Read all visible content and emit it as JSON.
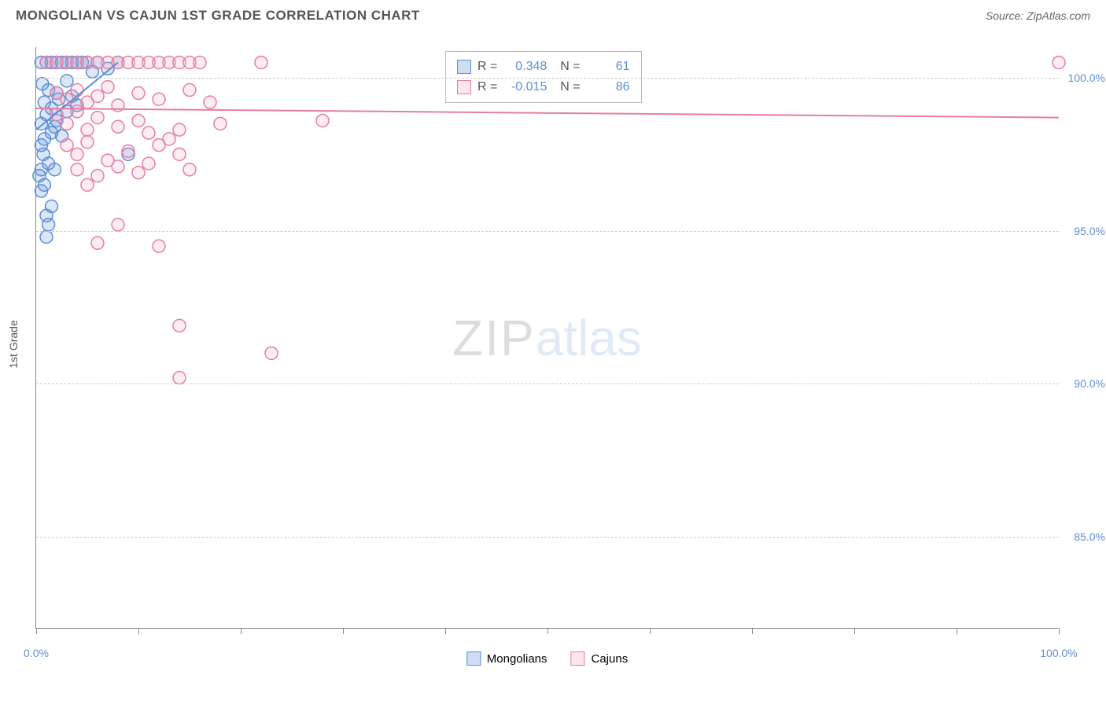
{
  "title": "MONGOLIAN VS CAJUN 1ST GRADE CORRELATION CHART",
  "source": "Source: ZipAtlas.com",
  "chart": {
    "type": "scatter",
    "y_axis_label": "1st Grade",
    "xlim": [
      0,
      100
    ],
    "ylim": [
      82,
      101
    ],
    "x_ticks": [
      0,
      10,
      20,
      30,
      40,
      50,
      60,
      70,
      80,
      90,
      100
    ],
    "x_tick_labels": {
      "0": "0.0%",
      "100": "100.0%"
    },
    "y_ticks": [
      85,
      90,
      95,
      100
    ],
    "y_tick_labels": {
      "85": "85.0%",
      "90": "90.0%",
      "95": "95.0%",
      "100": "100.0%"
    },
    "grid_color": "#cccccc",
    "axis_color": "#888888",
    "background_color": "#ffffff",
    "marker_radius": 8,
    "marker_fill_opacity": 0.22,
    "marker_stroke_width": 1.5,
    "trend_line_width": 2,
    "series": [
      {
        "name": "Mongolians",
        "color_stroke": "#5b8fd6",
        "color_fill": "#5b8fd6",
        "R": "0.348",
        "N": "61",
        "trend": {
          "x1": 0,
          "y1": 98.3,
          "x2": 8,
          "y2": 100.5
        },
        "points": [
          [
            0.5,
            100.5
          ],
          [
            1,
            100.5
          ],
          [
            1.5,
            100.5
          ],
          [
            2,
            100.5
          ],
          [
            2.5,
            100.5
          ],
          [
            3,
            100.5
          ],
          [
            3.5,
            100.5
          ],
          [
            4,
            100.5
          ],
          [
            4.5,
            100.5
          ],
          [
            5,
            100.5
          ],
          [
            0.6,
            99.8
          ],
          [
            1.2,
            99.6
          ],
          [
            2,
            99.5
          ],
          [
            3,
            99.9
          ],
          [
            5.5,
            100.2
          ],
          [
            6,
            100.5
          ],
          [
            7,
            100.3
          ],
          [
            8,
            100.5
          ],
          [
            0.8,
            99.2
          ],
          [
            1.5,
            99.0
          ],
          [
            2.2,
            99.3
          ],
          [
            3.5,
            99.4
          ],
          [
            4,
            99.1
          ],
          [
            1,
            98.8
          ],
          [
            2,
            98.6
          ],
          [
            3,
            98.9
          ],
          [
            0.5,
            98.5
          ],
          [
            1.8,
            98.4
          ],
          [
            0.8,
            98.0
          ],
          [
            1.5,
            98.2
          ],
          [
            0.5,
            97.8
          ],
          [
            2.5,
            98.1
          ],
          [
            0.7,
            97.5
          ],
          [
            1.2,
            97.2
          ],
          [
            1.8,
            97.0
          ],
          [
            0.5,
            97.0
          ],
          [
            0.3,
            96.8
          ],
          [
            9,
            97.5
          ],
          [
            0.5,
            96.3
          ],
          [
            0.8,
            96.5
          ],
          [
            1,
            95.5
          ],
          [
            1.5,
            95.8
          ],
          [
            1.2,
            95.2
          ],
          [
            1,
            94.8
          ]
        ]
      },
      {
        "name": "Cajuns",
        "color_stroke": "#e67da3",
        "color_fill": "#f5a8c3",
        "R": "-0.015",
        "N": "86",
        "trend": {
          "x1": 0,
          "y1": 99.0,
          "x2": 100,
          "y2": 98.7
        },
        "points": [
          [
            1,
            100.5
          ],
          [
            2,
            100.5
          ],
          [
            3,
            100.5
          ],
          [
            4,
            100.5
          ],
          [
            5,
            100.5
          ],
          [
            6,
            100.5
          ],
          [
            7,
            100.5
          ],
          [
            8,
            100.5
          ],
          [
            9,
            100.5
          ],
          [
            10,
            100.5
          ],
          [
            11,
            100.5
          ],
          [
            12,
            100.5
          ],
          [
            13,
            100.5
          ],
          [
            14,
            100.5
          ],
          [
            15,
            100.5
          ],
          [
            16,
            100.5
          ],
          [
            22,
            100.5
          ],
          [
            100,
            100.5
          ],
          [
            2,
            99.5
          ],
          [
            3,
            99.3
          ],
          [
            4,
            99.6
          ],
          [
            5,
            99.2
          ],
          [
            6,
            99.4
          ],
          [
            7,
            99.7
          ],
          [
            8,
            99.1
          ],
          [
            10,
            99.5
          ],
          [
            12,
            99.3
          ],
          [
            15,
            99.6
          ],
          [
            17,
            99.2
          ],
          [
            2,
            98.8
          ],
          [
            3,
            98.5
          ],
          [
            4,
            98.9
          ],
          [
            5,
            98.3
          ],
          [
            6,
            98.7
          ],
          [
            8,
            98.4
          ],
          [
            10,
            98.6
          ],
          [
            11,
            98.2
          ],
          [
            13,
            98.0
          ],
          [
            14,
            98.3
          ],
          [
            18,
            98.5
          ],
          [
            28,
            98.6
          ],
          [
            3,
            97.8
          ],
          [
            4,
            97.5
          ],
          [
            5,
            97.9
          ],
          [
            7,
            97.3
          ],
          [
            9,
            97.6
          ],
          [
            11,
            97.2
          ],
          [
            12,
            97.8
          ],
          [
            14,
            97.5
          ],
          [
            4,
            97.0
          ],
          [
            6,
            96.8
          ],
          [
            8,
            97.1
          ],
          [
            10,
            96.9
          ],
          [
            15,
            97.0
          ],
          [
            5,
            96.5
          ],
          [
            8,
            95.2
          ],
          [
            6,
            94.6
          ],
          [
            12,
            94.5
          ],
          [
            14,
            91.9
          ],
          [
            23,
            91.0
          ],
          [
            14,
            90.2
          ]
        ]
      }
    ],
    "watermark": {
      "part1": "ZIP",
      "part2": "atlas"
    },
    "legend_labels": {
      "series1": "Mongolians",
      "series2": "Cajuns"
    }
  }
}
